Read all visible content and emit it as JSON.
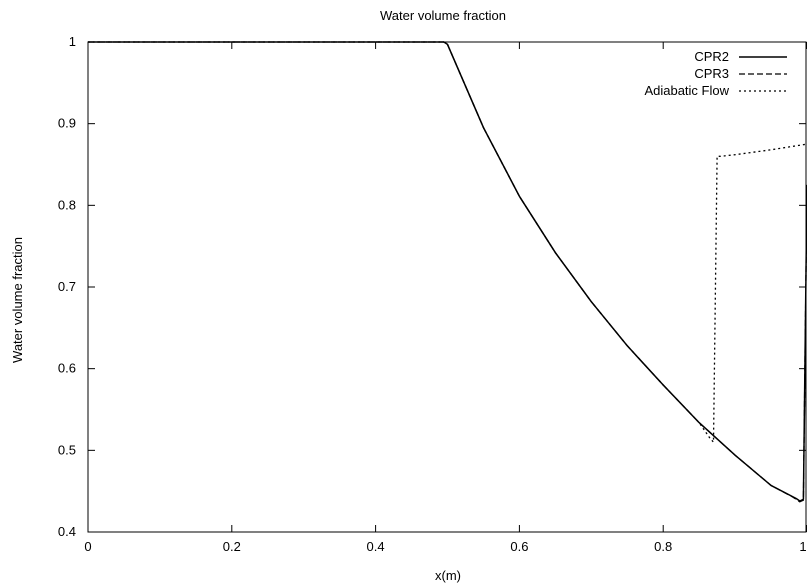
{
  "chart_data": {
    "type": "line",
    "title": "Water volume fraction",
    "xlabel": "x(m)",
    "ylabel": "Water volume fraction",
    "xlim": [
      0,
      1
    ],
    "ylim": [
      0.4,
      1
    ],
    "x_ticks": [
      "0",
      "0.2",
      "0.4",
      "0.6",
      "0.8",
      "1"
    ],
    "y_ticks": [
      "0.4",
      "0.5",
      "0.6",
      "0.7",
      "0.8",
      "0.9",
      "1"
    ],
    "grid": false,
    "legend_position": "top-right",
    "series": [
      {
        "name": "CPR2",
        "style": "solid",
        "x": [
          0,
          0.2,
          0.4,
          0.495,
          0.5,
          0.55,
          0.6,
          0.65,
          0.7,
          0.75,
          0.8,
          0.85,
          0.9,
          0.95,
          0.985,
          0.99,
          0.995,
          1.0
        ],
        "y": [
          1,
          1,
          1,
          1,
          0.997,
          0.895,
          0.811,
          0.742,
          0.682,
          0.628,
          0.58,
          0.534,
          0.494,
          0.457,
          0.441,
          0.438,
          0.44,
          0.825
        ]
      },
      {
        "name": "CPR3",
        "style": "dashed",
        "x": [
          0,
          0.2,
          0.4,
          0.495,
          0.5,
          0.55,
          0.6,
          0.65,
          0.7,
          0.75,
          0.8,
          0.85,
          0.9,
          0.95,
          0.98,
          0.985,
          0.99,
          0.995,
          1.0
        ],
        "y": [
          1,
          1,
          1,
          1,
          0.997,
          0.895,
          0.811,
          0.742,
          0.682,
          0.628,
          0.58,
          0.534,
          0.494,
          0.457,
          0.443,
          0.44,
          0.437,
          0.439,
          0.825
        ]
      },
      {
        "name": "Adiabatic Flow",
        "style": "dotted",
        "x": [
          0,
          0.2,
          0.4,
          0.495,
          0.5,
          0.55,
          0.6,
          0.65,
          0.7,
          0.75,
          0.8,
          0.85,
          0.865,
          0.87,
          0.875,
          0.88,
          0.9,
          0.95,
          1.0
        ],
        "y": [
          1,
          1,
          1,
          1,
          0.997,
          0.895,
          0.811,
          0.742,
          0.682,
          0.628,
          0.58,
          0.534,
          0.515,
          0.51,
          0.86,
          0.86,
          0.862,
          0.868,
          0.875
        ]
      }
    ]
  }
}
